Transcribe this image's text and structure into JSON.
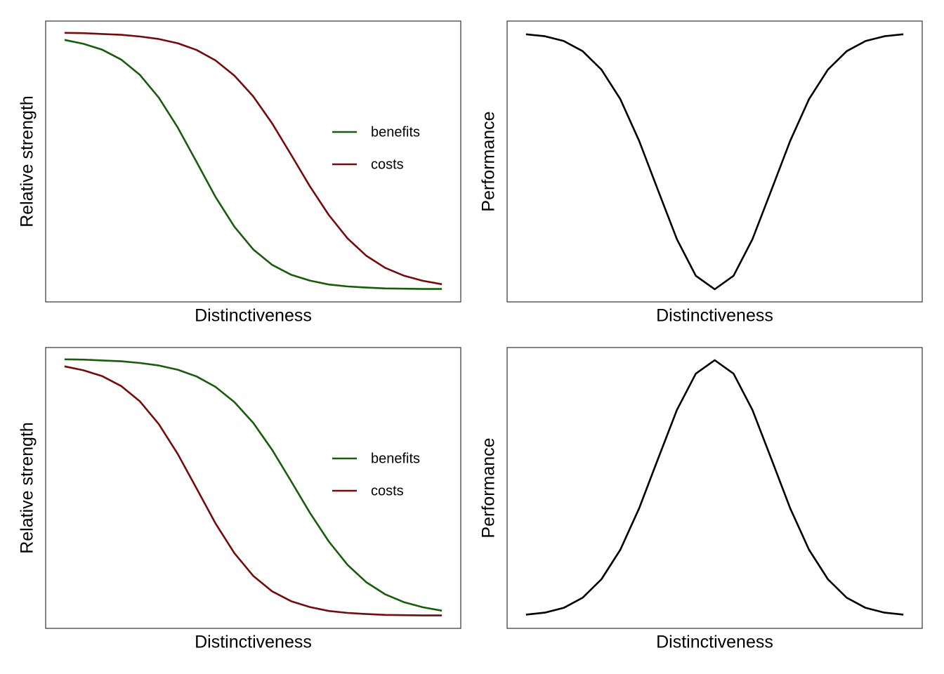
{
  "chart_data": [
    {
      "type": "line",
      "xlabel": "Distinctiveness",
      "ylabel": "Relative strength",
      "x": [
        0,
        0.05,
        0.1,
        0.15,
        0.2,
        0.25,
        0.3,
        0.35,
        0.4,
        0.45,
        0.5,
        0.55,
        0.6,
        0.65,
        0.7,
        0.75,
        0.8,
        0.85,
        0.9,
        0.95,
        1
      ],
      "xlim": [
        -0.05,
        1.05
      ],
      "ylim": [
        0,
        1
      ],
      "legend": "center right",
      "series": [
        {
          "name": "benefits",
          "color": "#185c0c",
          "values": [
            0.933,
            0.919,
            0.898,
            0.863,
            0.808,
            0.727,
            0.621,
            0.498,
            0.374,
            0.268,
            0.187,
            0.132,
            0.097,
            0.076,
            0.062,
            0.055,
            0.051,
            0.048,
            0.047,
            0.046,
            0.046
          ]
        },
        {
          "name": "costs",
          "color": "#730c0c",
          "values": [
            0.958,
            0.957,
            0.954,
            0.951,
            0.945,
            0.936,
            0.921,
            0.897,
            0.86,
            0.806,
            0.732,
            0.636,
            0.525,
            0.412,
            0.31,
            0.226,
            0.164,
            0.121,
            0.093,
            0.075,
            0.063
          ]
        }
      ]
    },
    {
      "type": "line",
      "xlabel": "Distinctiveness",
      "ylabel": "Performance",
      "x": [
        0,
        0.05,
        0.1,
        0.15,
        0.2,
        0.25,
        0.3,
        0.35,
        0.4,
        0.45,
        0.5,
        0.55,
        0.6,
        0.65,
        0.7,
        0.75,
        0.8,
        0.85,
        0.9,
        0.95,
        1
      ],
      "xlim": [
        -0.05,
        1.05
      ],
      "ylim": [
        0,
        1
      ],
      "color": "#000000",
      "values": [
        0.953,
        0.946,
        0.929,
        0.893,
        0.827,
        0.722,
        0.573,
        0.397,
        0.223,
        0.093,
        0.045,
        0.093,
        0.223,
        0.397,
        0.573,
        0.722,
        0.827,
        0.893,
        0.929,
        0.946,
        0.953
      ]
    },
    {
      "type": "line",
      "xlabel": "Distinctiveness",
      "ylabel": "Relative strength",
      "x": [
        0,
        0.05,
        0.1,
        0.15,
        0.2,
        0.25,
        0.3,
        0.35,
        0.4,
        0.45,
        0.5,
        0.55,
        0.6,
        0.65,
        0.7,
        0.75,
        0.8,
        0.85,
        0.9,
        0.95,
        1
      ],
      "xlim": [
        -0.05,
        1.05
      ],
      "ylim": [
        0,
        1
      ],
      "legend": "center right",
      "series": [
        {
          "name": "benefits",
          "color": "#185c0c",
          "values": [
            0.958,
            0.957,
            0.954,
            0.951,
            0.945,
            0.936,
            0.921,
            0.897,
            0.86,
            0.806,
            0.732,
            0.636,
            0.525,
            0.412,
            0.31,
            0.226,
            0.164,
            0.121,
            0.093,
            0.075,
            0.063
          ]
        },
        {
          "name": "costs",
          "color": "#730c0c",
          "values": [
            0.933,
            0.919,
            0.898,
            0.863,
            0.808,
            0.727,
            0.621,
            0.498,
            0.374,
            0.268,
            0.187,
            0.132,
            0.097,
            0.076,
            0.062,
            0.055,
            0.051,
            0.048,
            0.047,
            0.046,
            0.046
          ]
        }
      ]
    },
    {
      "type": "line",
      "xlabel": "Distinctiveness",
      "ylabel": "Performance",
      "x": [
        0,
        0.05,
        0.1,
        0.15,
        0.2,
        0.25,
        0.3,
        0.35,
        0.4,
        0.45,
        0.5,
        0.55,
        0.6,
        0.65,
        0.7,
        0.75,
        0.8,
        0.85,
        0.9,
        0.95,
        1
      ],
      "xlim": [
        -0.05,
        1.05
      ],
      "ylim": [
        0,
        1
      ],
      "color": "#000000",
      "values": [
        0.049,
        0.056,
        0.073,
        0.109,
        0.175,
        0.28,
        0.428,
        0.604,
        0.778,
        0.907,
        0.955,
        0.907,
        0.778,
        0.604,
        0.428,
        0.28,
        0.175,
        0.109,
        0.073,
        0.056,
        0.049
      ]
    }
  ]
}
